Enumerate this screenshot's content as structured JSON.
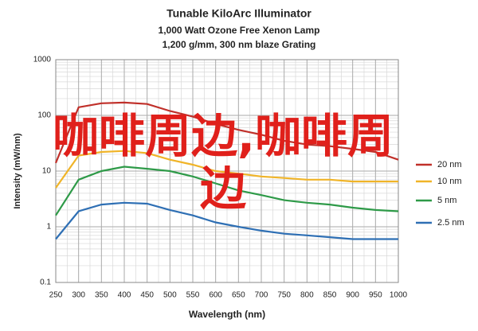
{
  "chart_data": {
    "type": "line",
    "title": "Tunable KiloArc Illuminator",
    "subtitle": "1,000 Watt Ozone Free Xenon Lamp",
    "subtitle2": "1,200 g/mm, 300 nm blaze Grating",
    "xlabel": "Wavelength (nm)",
    "ylabel": "Intensity (mW/nm)",
    "annotation": "咖啡周边,咖啡周边",
    "x": [
      250,
      300,
      350,
      400,
      450,
      500,
      550,
      600,
      650,
      700,
      750,
      800,
      850,
      900,
      950,
      1000
    ],
    "series": [
      {
        "name": "20 nm",
        "color": "#c0302a",
        "values": [
          14,
          140,
          165,
          170,
          160,
          120,
          95,
          70,
          55,
          45,
          35,
          30,
          28,
          25,
          22,
          16
        ]
      },
      {
        "name": "10 nm",
        "color": "#f0b428",
        "values": [
          5,
          19,
          22,
          23,
          21,
          16,
          13,
          10,
          9,
          8,
          7.5,
          7,
          7,
          6.5,
          6.5,
          6.5
        ]
      },
      {
        "name": "5 nm",
        "color": "#2e9a48",
        "values": [
          1.6,
          7,
          10,
          12,
          11,
          10,
          8,
          6,
          4.5,
          3.7,
          3,
          2.7,
          2.5,
          2.2,
          2,
          1.9
        ]
      },
      {
        "name": "2.5 nm",
        "color": "#2e6fb4",
        "values": [
          0.6,
          1.9,
          2.5,
          2.7,
          2.6,
          2,
          1.6,
          1.2,
          1,
          0.85,
          0.75,
          0.7,
          0.65,
          0.6,
          0.6,
          0.6
        ]
      }
    ],
    "xlim": [
      250,
      1000
    ],
    "xticks": [
      250,
      300,
      350,
      400,
      450,
      500,
      550,
      600,
      650,
      700,
      750,
      800,
      850,
      900,
      950,
      1000
    ],
    "ylim": [
      0.1,
      1000
    ],
    "yticks": [
      0.1,
      1,
      10,
      100,
      1000
    ],
    "log_y": true,
    "grid": true,
    "legend": "right"
  }
}
